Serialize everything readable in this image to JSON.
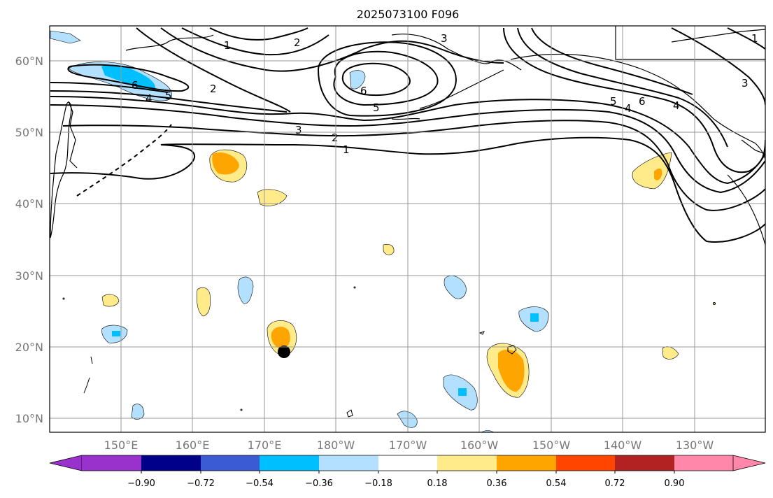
{
  "title": "2025073100 F096",
  "lat_labels": [
    "10°N",
    "20°N",
    "30°N",
    "40°N",
    "50°N",
    "60°N"
  ],
  "lon_labels": [
    "150°E",
    "160°E",
    "170°E",
    "180°W",
    "170°W",
    "160°W",
    "150°W",
    "140°W",
    "130°W"
  ],
  "colorbar": {
    "tick_labels": [
      "−0.90",
      "−0.72",
      "−0.54",
      "−0.36",
      "−0.18",
      "0.18",
      "0.36",
      "0.54",
      "0.72",
      "0.90"
    ],
    "colors": [
      "#9932cc",
      "#00008b",
      "#3b5bd5",
      "#00bfff",
      "#b3e0ff",
      "#ffffff",
      "#ffeb8a",
      "#ffa500",
      "#ff4500",
      "#b22222",
      "#ff88aa"
    ]
  },
  "contour_labels": [
    "1",
    "2",
    "3",
    "4",
    "5",
    "6",
    "1",
    "2",
    "3",
    "5",
    "6",
    "4",
    "5",
    "6",
    "4",
    "3",
    "1",
    "2"
  ],
  "map_colors": {
    "pos_light": "#ffeb8a",
    "pos_mid": "#ffa500",
    "neg_light": "#b3e0ff",
    "neg_mid": "#00bfff",
    "grid": "#999999",
    "marker": "#000000"
  }
}
